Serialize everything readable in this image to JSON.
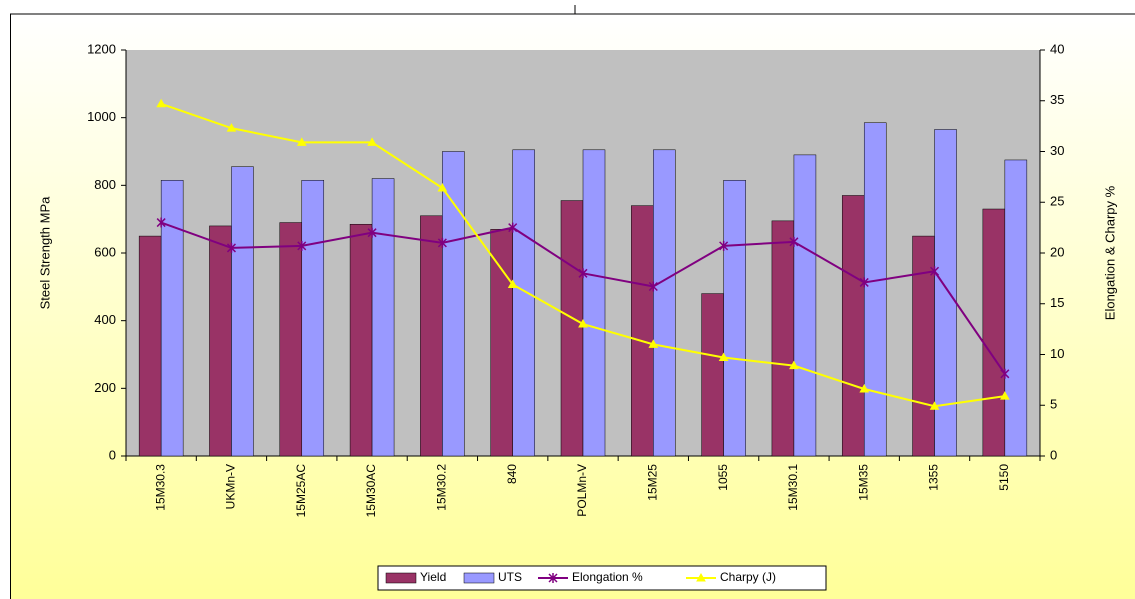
{
  "chart_data": {
    "type": "bar",
    "categories": [
      "15M30.3",
      "UKMn-V",
      "15M25AC",
      "15M30AC",
      "15M30.2",
      "840",
      "POLMn-V",
      "15M25",
      "1055",
      "15M30.1",
      "15M35",
      "1355",
      "5150"
    ],
    "series": [
      {
        "name": "Yield",
        "type": "bar",
        "color": "#993366",
        "values": [
          650,
          680,
          690,
          685,
          710,
          670,
          755,
          740,
          480,
          695,
          770,
          650,
          730
        ]
      },
      {
        "name": "UTS",
        "type": "bar",
        "color": "#9999ff",
        "values": [
          815,
          855,
          815,
          820,
          900,
          905,
          905,
          905,
          815,
          890,
          985,
          965,
          875
        ]
      },
      {
        "name": "Elongation %",
        "type": "line",
        "axis": "y2",
        "marker": "star",
        "color": "#800080",
        "values": [
          23,
          20.5,
          20.7,
          22,
          21,
          22.5,
          18,
          16.7,
          20.7,
          21.1,
          17.1,
          18.2,
          8.1
        ]
      },
      {
        "name": "Charpy (J)",
        "type": "line",
        "axis": "y2",
        "marker": "triangle",
        "color": "#ffff00",
        "values": [
          34.7,
          32.3,
          30.9,
          30.9,
          26.4,
          16.9,
          13,
          11,
          9.7,
          8.9,
          6.6,
          4.9,
          5.9
        ]
      }
    ],
    "y_label": "Steel Strength MPa",
    "y2_label": "Elongation & Charpy %",
    "ylim": [
      0,
      1200
    ],
    "yticks": [
      0,
      200,
      400,
      600,
      800,
      1000,
      1200
    ],
    "y2lim": [
      0,
      40
    ],
    "y2ticks": [
      0,
      5,
      10,
      15,
      20,
      25,
      30,
      35,
      40
    ],
    "grid": false,
    "legend": "bottom",
    "plot_background": "#c0c0c0"
  }
}
